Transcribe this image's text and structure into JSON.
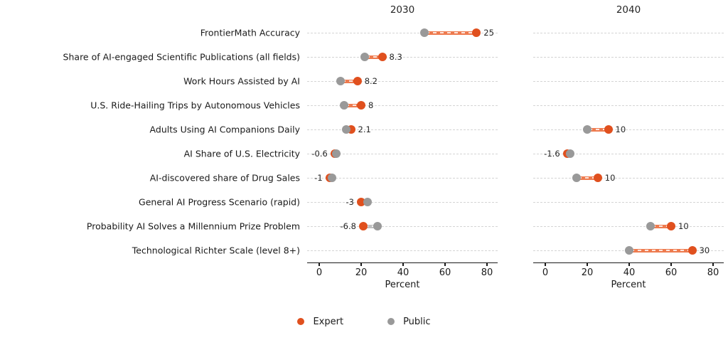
{
  "chart_data": {
    "type": "dumbbell",
    "xlabel": "Percent",
    "x_ticks": [
      0,
      20,
      40,
      60,
      80
    ],
    "x_tick_labels": [
      "0",
      "20",
      "40",
      "60",
      "80"
    ],
    "xlim": [
      -6,
      86
    ],
    "grid": "horizontal-dashed",
    "legend_position": "bottom-center",
    "colors": {
      "expert": "#E0501E",
      "public": "#999999",
      "expert_line": "#EE7B4F",
      "public_line": "#C0C0C0"
    },
    "legend": {
      "items": [
        {
          "label": "Expert",
          "color": "#E0501E"
        },
        {
          "label": "Public",
          "color": "#999999"
        }
      ]
    },
    "categories": [
      "FrontierMath Accuracy",
      "Share of AI-engaged Scientific Publications (all fields)",
      "Work Hours Assisted by AI",
      "U.S. Ride-Hailing Trips by Autonomous Vehicles",
      "Adults Using AI Companions Daily",
      "AI Share of U.S. Electricity",
      "AI-discovered share of Drug Sales",
      "General AI Progress Scenario (rapid)",
      "Probability AI Solves a Millennium Prize Problem",
      "Technological Richter Scale (level 8+)"
    ],
    "panels": [
      {
        "title": "2030",
        "xlabel": "Percent",
        "values": [
          {
            "public": 50,
            "expert": 75,
            "diff_label": "25"
          },
          {
            "public": 21.7,
            "expert": 30,
            "diff_label": "8.3"
          },
          {
            "public": 10,
            "expert": 18.2,
            "diff_label": "8.2"
          },
          {
            "public": 12,
            "expert": 20,
            "diff_label": "8"
          },
          {
            "public": 13,
            "expert": 15.1,
            "diff_label": "2.1"
          },
          {
            "public": 8,
            "expert": 7.4,
            "diff_label": "-0.6"
          },
          {
            "public": 6,
            "expert": 5,
            "diff_label": "-1"
          },
          {
            "public": 23,
            "expert": 20,
            "diff_label": "-3"
          },
          {
            "public": 27.8,
            "expert": 21,
            "diff_label": "-6.8"
          },
          null
        ]
      },
      {
        "title": "2040",
        "xlabel": "Percent",
        "values": [
          null,
          null,
          null,
          null,
          {
            "public": 20,
            "expert": 30,
            "diff_label": "10"
          },
          {
            "public": 12,
            "expert": 10.4,
            "diff_label": "-1.6"
          },
          {
            "public": 15,
            "expert": 25,
            "diff_label": "10"
          },
          null,
          {
            "public": 50,
            "expert": 60,
            "diff_label": "10"
          },
          {
            "public": 40,
            "expert": 70,
            "diff_label": "30"
          }
        ]
      }
    ]
  }
}
